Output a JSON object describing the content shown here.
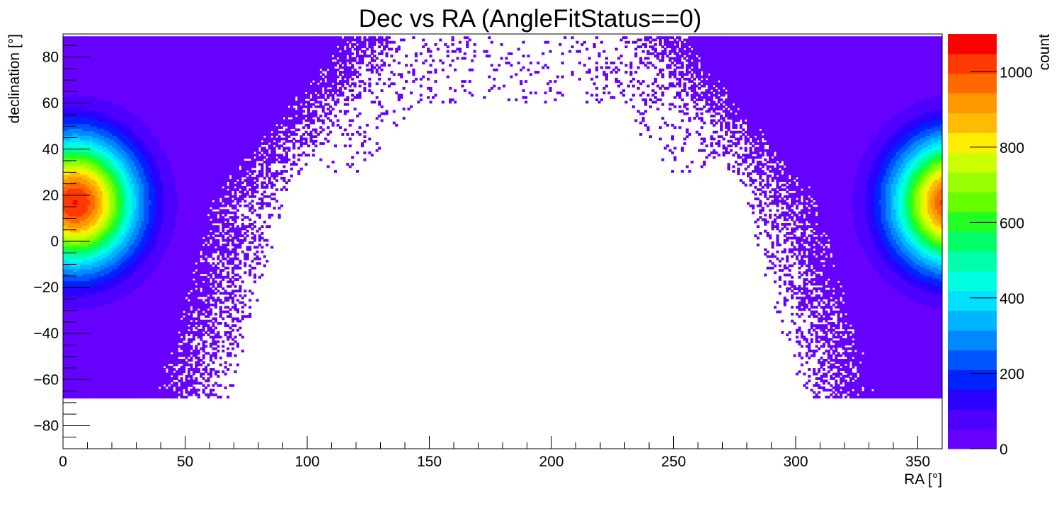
{
  "chart_data": {
    "type": "heatmap",
    "title": "Dec vs RA (AngleFitStatus==0)",
    "xlabel": "RA [°]",
    "ylabel": "declination [°]",
    "zlabel": "count",
    "xlim": [
      0,
      360
    ],
    "ylim": [
      -90,
      90
    ],
    "zlim": [
      0,
      1100
    ],
    "x_ticks": [
      0,
      50,
      100,
      150,
      200,
      250,
      300,
      350
    ],
    "x_tick_labels": [
      "0",
      "50",
      "100",
      "150",
      "200",
      "250",
      "300",
      "350"
    ],
    "y_ticks": [
      -80,
      -60,
      -40,
      -20,
      0,
      20,
      40,
      60,
      80
    ],
    "y_tick_labels": [
      "−80",
      "−60",
      "−40",
      "−20",
      "0",
      "20",
      "40",
      "60",
      "80"
    ],
    "z_ticks": [
      0,
      200,
      400,
      600,
      800,
      1000
    ],
    "z_tick_labels": [
      "0",
      "200",
      "400",
      "600",
      "800",
      "1000"
    ],
    "grid": false,
    "legend": "colorbar-right",
    "bins": {
      "x": 360,
      "y": 180
    },
    "density_peak": {
      "ra": 5,
      "dec": 17,
      "count": 1050,
      "wraps_at": 360
    },
    "colors": [
      "#6600ff",
      "#4d00ff",
      "#2a00ff",
      "#0022ff",
      "#0055ff",
      "#0088ff",
      "#00b4ff",
      "#00e0ff",
      "#00ffe0",
      "#00ffaa",
      "#00ff66",
      "#22ff22",
      "#66ff00",
      "#99ff00",
      "#ccff00",
      "#ffee00",
      "#ffbb00",
      "#ff9900",
      "#ff6a00",
      "#ff3a00",
      "#ff0000"
    ]
  }
}
